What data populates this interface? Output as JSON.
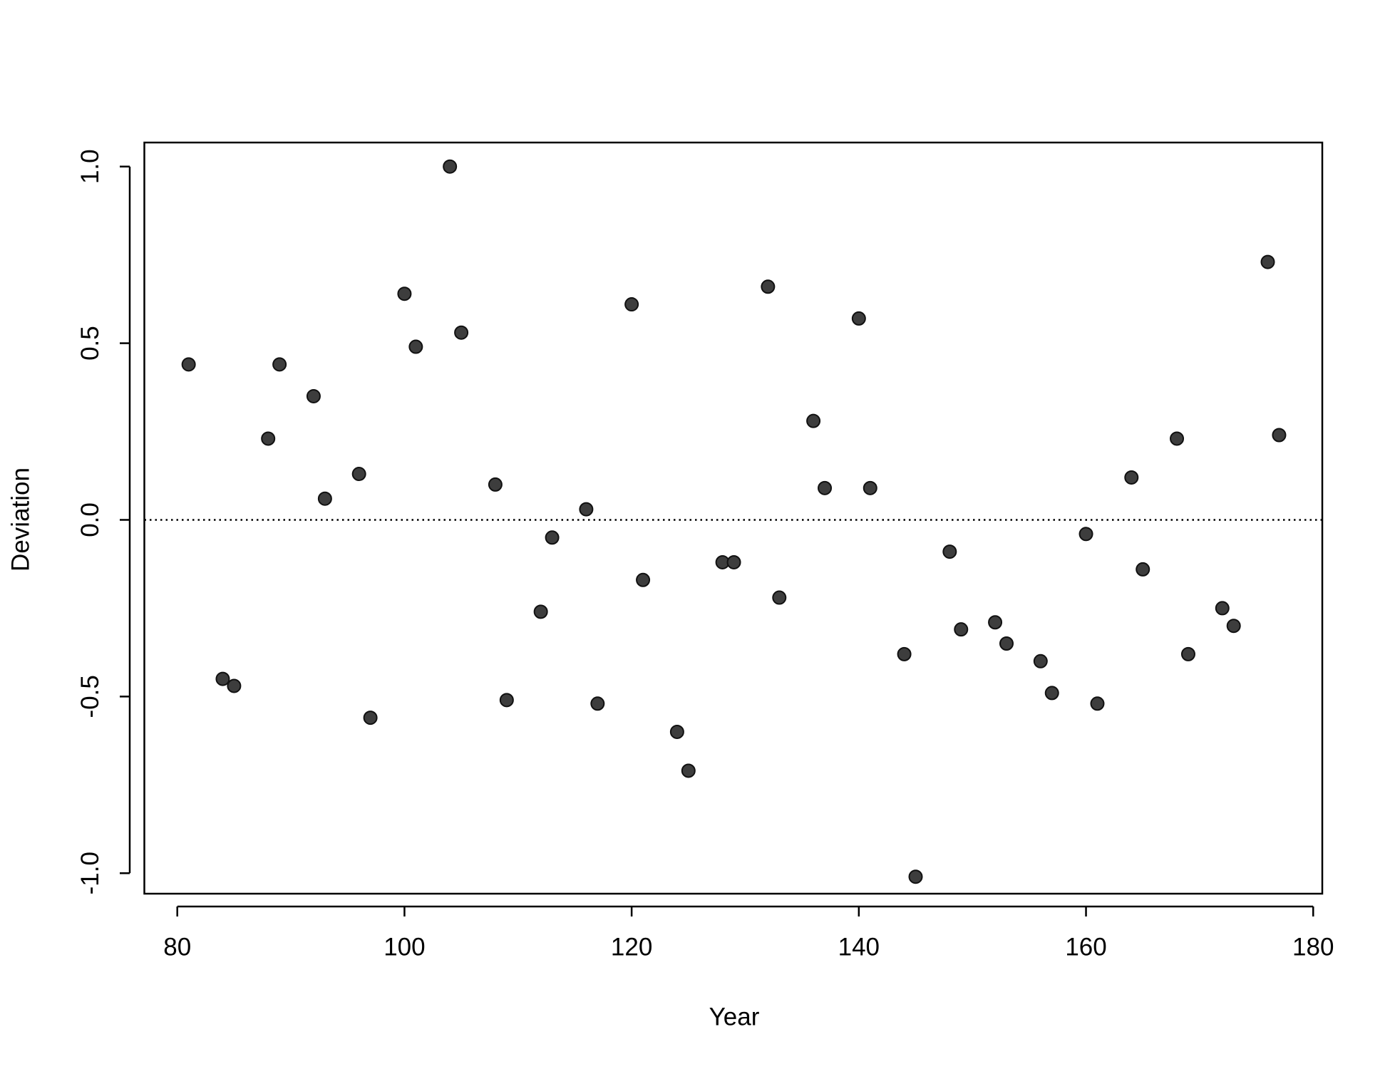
{
  "chart_data": {
    "type": "scatter",
    "x_label": "Year",
    "y_label": "Deviation",
    "x": [
      81,
      84,
      85,
      88,
      89,
      92,
      93,
      96,
      97,
      100,
      101,
      104,
      105,
      108,
      109,
      112,
      113,
      116,
      117,
      120,
      121,
      124,
      125,
      128,
      129,
      132,
      133,
      136,
      137,
      140,
      141,
      144,
      145,
      148,
      149,
      152,
      153,
      156,
      157,
      160,
      161,
      164,
      165,
      168,
      169,
      172,
      173,
      176,
      177
    ],
    "values": [
      0.44,
      -0.45,
      -0.47,
      0.23,
      0.44,
      0.35,
      0.06,
      0.13,
      -0.56,
      0.64,
      0.49,
      1.0,
      0.53,
      0.1,
      -0.51,
      -0.26,
      -0.05,
      0.03,
      -0.52,
      0.61,
      -0.17,
      -0.6,
      -0.71,
      -0.12,
      -0.12,
      0.66,
      -0.22,
      0.28,
      0.09,
      0.57,
      0.09,
      -0.38,
      -1.01,
      -0.09,
      -0.31,
      -0.29,
      -0.35,
      -0.4,
      -0.49,
      -0.04,
      -0.52,
      0.12,
      -0.14,
      0.23,
      -0.38,
      -0.25,
      -0.3,
      0.73,
      0.24
    ],
    "color": "#3d3d3d",
    "xlim": [
      77.1,
      180.8
    ],
    "ylim": [
      -1.058,
      1.068
    ],
    "xticks": [
      80,
      100,
      120,
      140,
      160,
      180
    ],
    "yticks": [
      {
        "value": -1,
        "label": "-1.0"
      },
      -0.5,
      {
        "value": 0,
        "label": "0.0"
      },
      0.5,
      {
        "value": 1,
        "label": "1.0"
      }
    ],
    "reference_line": 0,
    "grid": false
  }
}
